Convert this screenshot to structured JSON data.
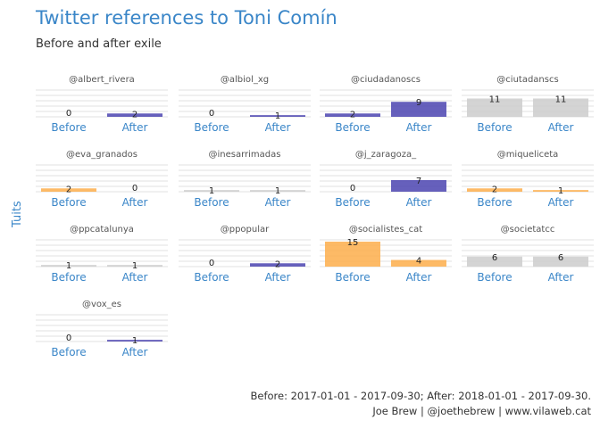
{
  "title": "Twitter references to Toni Comín",
  "subtitle": "Before and after exile",
  "ylabel": "Tuits",
  "caption": [
    "Before: 2017-01-01 - 2017-09-30; After: 2018-01-01 - 2017-09-30.",
    "Joe Brew | @joethebrew | www.vilaweb.cat"
  ],
  "colors": {
    "up": "#4b44b0",
    "down": "#fdae4b",
    "same": "#cccccc"
  },
  "chart_data": {
    "type": "bar",
    "title": "Twitter references to Toni Comín",
    "subtitle": "Before and after exile",
    "xlabel": "",
    "ylabel": "Tuits",
    "categories": [
      "Before",
      "After"
    ],
    "grid": true,
    "facets": [
      {
        "name": "@albert_rivera",
        "values": [
          0,
          2
        ]
      },
      {
        "name": "@albiol_xg",
        "values": [
          0,
          1
        ]
      },
      {
        "name": "@ciudadanoscs",
        "values": [
          2,
          9
        ]
      },
      {
        "name": "@ciutadanscs",
        "values": [
          11,
          11
        ]
      },
      {
        "name": "@eva_granados",
        "values": [
          2,
          0
        ]
      },
      {
        "name": "@inesarrimadas",
        "values": [
          1,
          1
        ]
      },
      {
        "name": "@j_zaragoza_",
        "values": [
          0,
          7
        ]
      },
      {
        "name": "@miqueliceta",
        "values": [
          2,
          1
        ]
      },
      {
        "name": "@ppcatalunya",
        "values": [
          1,
          1
        ]
      },
      {
        "name": "@ppopular",
        "values": [
          0,
          2
        ]
      },
      {
        "name": "@socialistes_cat",
        "values": [
          15,
          4
        ]
      },
      {
        "name": "@societatcc",
        "values": [
          6,
          6
        ]
      },
      {
        "name": "@vox_es",
        "values": [
          0,
          1
        ]
      }
    ]
  }
}
